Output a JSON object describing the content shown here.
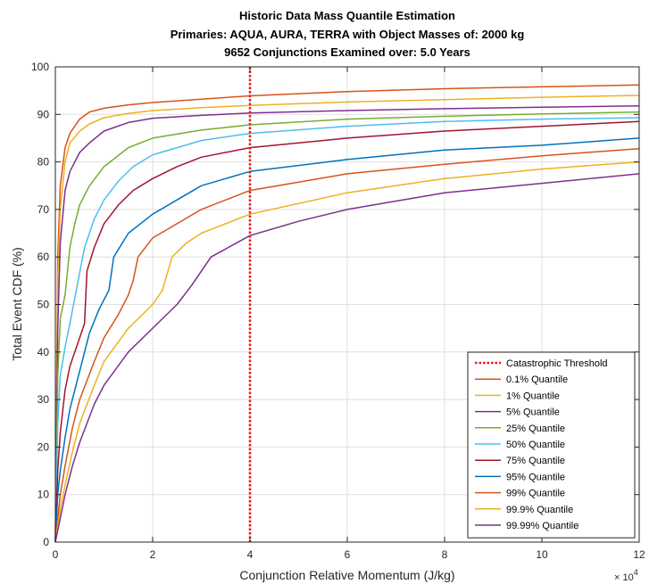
{
  "chart_data": {
    "type": "line",
    "title": [
      "Historic Data Mass Quantile Estimation",
      "Primaries: AQUA, AURA, TERRA with Object Masses of: 2000 kg",
      "9652 Conjunctions Examined over: 5.0 Years"
    ],
    "xlabel": "Conjunction Relative Momentum (J/kg)",
    "ylabel": "Total Event CDF (%)",
    "x_exponent_base": "× 10",
    "x_exponent_power": "4",
    "xlim": [
      0,
      12
    ],
    "ylim": [
      0,
      100
    ],
    "xticks": [
      "0",
      "2",
      "4",
      "6",
      "8",
      "10",
      "12"
    ],
    "yticks": [
      "0",
      "10",
      "20",
      "30",
      "40",
      "50",
      "60",
      "70",
      "80",
      "90",
      "100"
    ],
    "grid": true,
    "legend_position": "bottom-right",
    "threshold": {
      "name": "Catastrophic Threshold",
      "x": 4,
      "color": "#e8191c"
    },
    "series": [
      {
        "name": "0.1% Quantile",
        "color": "#d95319",
        "x": [
          0,
          0.05,
          0.1,
          0.2,
          0.3,
          0.5,
          0.7,
          1,
          1.5,
          2,
          3,
          4,
          6,
          8,
          10,
          12
        ],
        "y": [
          0,
          60,
          75,
          83,
          86,
          89,
          90.5,
          91.3,
          92,
          92.5,
          93.2,
          93.9,
          94.8,
          95.4,
          95.8,
          96.2
        ]
      },
      {
        "name": "1% Quantile",
        "color": "#edb120",
        "x": [
          0,
          0.05,
          0.1,
          0.2,
          0.3,
          0.5,
          0.7,
          1,
          1.5,
          2,
          3,
          4,
          6,
          8,
          10,
          12
        ],
        "y": [
          0,
          55,
          70,
          80,
          84,
          86.5,
          88,
          89.3,
          90.2,
          90.8,
          91.4,
          91.9,
          92.6,
          93.1,
          93.6,
          94
        ]
      },
      {
        "name": "5% Quantile",
        "color": "#7e2f8e",
        "x": [
          0,
          0.05,
          0.1,
          0.2,
          0.3,
          0.5,
          0.7,
          1,
          1.5,
          2,
          3,
          4,
          6,
          8,
          10,
          12
        ],
        "y": [
          0,
          45,
          63,
          74,
          78,
          82,
          84,
          86.5,
          88.3,
          89.2,
          89.8,
          90.3,
          90.8,
          91.2,
          91.5,
          91.8
        ]
      },
      {
        "name": "25% Quantile",
        "color": "#77ac30",
        "x": [
          0,
          0.05,
          0.1,
          0.2,
          0.3,
          0.4,
          0.5,
          0.7,
          1,
          1.5,
          2,
          3,
          4,
          6,
          8,
          10,
          12
        ],
        "y": [
          0,
          35,
          47,
          52,
          62,
          67,
          71,
          75,
          79,
          83,
          85,
          86.7,
          87.8,
          89,
          89.6,
          90.1,
          90.5
        ]
      },
      {
        "name": "50% Quantile",
        "color": "#4dbeee",
        "x": [
          0,
          0.05,
          0.1,
          0.2,
          0.3,
          0.45,
          0.6,
          0.8,
          1,
          1.3,
          1.6,
          2,
          2.5,
          3,
          4,
          6,
          8,
          10,
          12
        ],
        "y": [
          0,
          25,
          35,
          41,
          46,
          54,
          62,
          68,
          72,
          76,
          79,
          81.5,
          83,
          84.5,
          86,
          87.5,
          88.5,
          89,
          89.3
        ]
      },
      {
        "name": "75% Quantile",
        "color": "#a2142f",
        "x": [
          0,
          0.05,
          0.1,
          0.2,
          0.3,
          0.5,
          0.6,
          0.65,
          0.8,
          1,
          1.3,
          1.6,
          2,
          2.5,
          3,
          4,
          6,
          8,
          10,
          12
        ],
        "y": [
          0,
          15,
          23,
          32,
          37,
          43,
          46,
          57,
          62,
          67,
          71,
          74,
          76.5,
          79,
          81,
          83,
          85,
          86.5,
          87.5,
          88.5
        ]
      },
      {
        "name": "95% Quantile",
        "color": "#0072bd",
        "x": [
          0,
          0.05,
          0.1,
          0.2,
          0.3,
          0.5,
          0.7,
          0.9,
          1.1,
          1.2,
          1.5,
          2,
          2.5,
          3,
          4,
          6,
          8,
          10,
          12
        ],
        "y": [
          0,
          10,
          15,
          22,
          28,
          36,
          44,
          49,
          53,
          60,
          65,
          69,
          72,
          75,
          78,
          80.5,
          82.5,
          83.5,
          85
        ]
      },
      {
        "name": "99% Quantile",
        "color": "#d95319",
        "x": [
          0,
          0.1,
          0.2,
          0.35,
          0.5,
          0.8,
          1,
          1.3,
          1.5,
          1.6,
          1.7,
          2,
          2.5,
          3,
          4,
          6,
          8,
          10,
          12
        ],
        "y": [
          0,
          10,
          16,
          24,
          30,
          38,
          43,
          48,
          52,
          55,
          60,
          64,
          67,
          70,
          74,
          77.5,
          79.5,
          81.3,
          82.8
        ]
      },
      {
        "name": "99.9% Quantile",
        "color": "#edb120",
        "x": [
          0,
          0.1,
          0.2,
          0.35,
          0.5,
          0.8,
          1,
          1.5,
          2,
          2.2,
          2.4,
          2.7,
          3,
          4,
          6,
          8,
          10,
          12
        ],
        "y": [
          0,
          7,
          12,
          19,
          25,
          33,
          38,
          45,
          50,
          53,
          60,
          63,
          65,
          69,
          73.5,
          76.5,
          78.5,
          80
        ]
      },
      {
        "name": "99.99% Quantile",
        "color": "#7e2f8e",
        "x": [
          0,
          0.1,
          0.2,
          0.35,
          0.5,
          0.8,
          1,
          1.5,
          2,
          2.5,
          2.8,
          3.2,
          4,
          5,
          6,
          8,
          10,
          12
        ],
        "y": [
          0,
          5,
          10,
          16,
          21,
          29,
          33,
          40,
          45,
          50,
          54,
          60,
          64.5,
          67.5,
          70,
          73.5,
          75.5,
          77.5
        ]
      }
    ]
  }
}
